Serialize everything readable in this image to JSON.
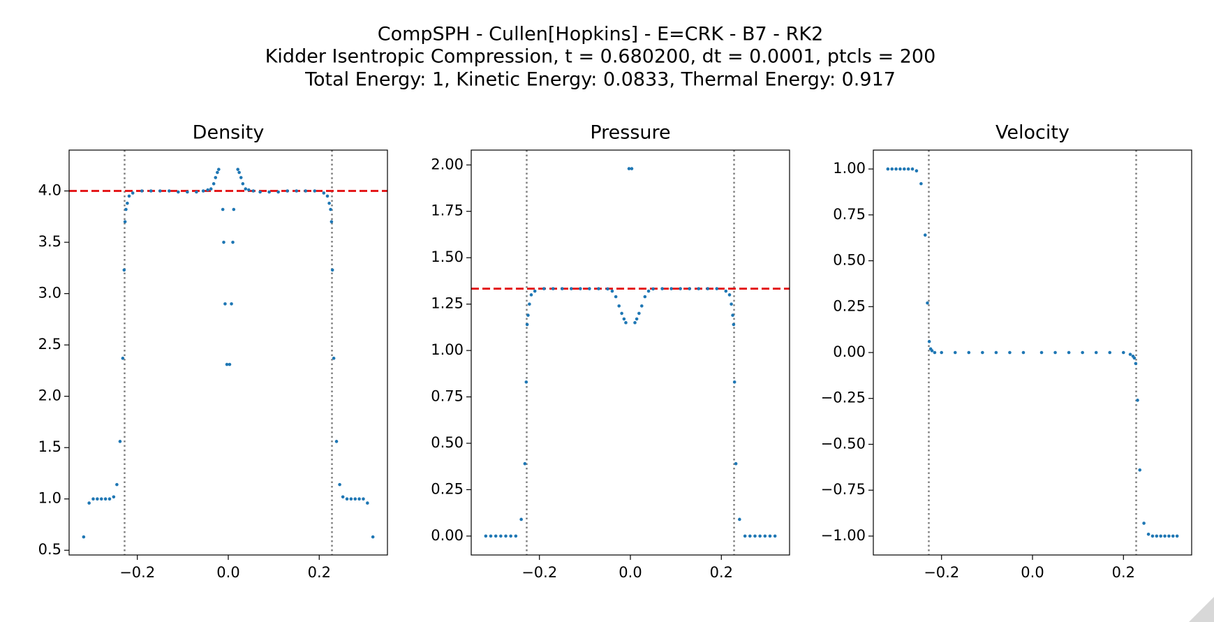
{
  "title_lines": [
    "CompSPH - Cullen[Hopkins] - E=CRK - B7 - RK2",
    "Kidder Isentropic Compression, t = 0.680200, dt = 0.0001, ptcls = 200",
    "Total Energy: 1, Kinetic Energy: 0.0833, Thermal Energy: 0.917"
  ],
  "chart_data": [
    {
      "type": "scatter",
      "title": "Density",
      "color": "#1f77b4",
      "x": [
        -0.318,
        -0.306,
        -0.297,
        -0.288,
        -0.279,
        -0.27,
        -0.261,
        -0.252,
        -0.245,
        -0.238,
        -0.232,
        -0.229,
        -0.227,
        -0.225,
        -0.222,
        -0.218,
        -0.21,
        -0.19,
        -0.17,
        -0.15,
        -0.13,
        -0.11,
        -0.09,
        -0.07,
        -0.055,
        -0.045,
        -0.038,
        -0.032,
        -0.028,
        -0.024,
        -0.021,
        -0.012,
        -0.01,
        -0.007,
        -0.003,
        0.003,
        0.007,
        0.01,
        0.012,
        0.021,
        0.024,
        0.028,
        0.032,
        0.038,
        0.045,
        0.055,
        0.07,
        0.09,
        0.11,
        0.13,
        0.15,
        0.17,
        0.19,
        0.21,
        0.218,
        0.222,
        0.225,
        0.227,
        0.229,
        0.232,
        0.238,
        0.245,
        0.252,
        0.261,
        0.27,
        0.279,
        0.288,
        0.297,
        0.306,
        0.318
      ],
      "y": [
        0.63,
        0.96,
        1.0,
        1.0,
        1.0,
        1.0,
        1.0,
        1.02,
        1.14,
        1.56,
        2.37,
        3.23,
        3.7,
        3.82,
        3.88,
        3.95,
        3.98,
        4.0,
        4.0,
        4.0,
        4.0,
        3.99,
        3.99,
        3.99,
        4.0,
        4.01,
        4.02,
        4.07,
        4.13,
        4.18,
        4.21,
        3.82,
        3.5,
        2.9,
        2.31,
        2.31,
        2.9,
        3.5,
        3.82,
        4.21,
        4.18,
        4.13,
        4.07,
        4.02,
        4.01,
        4.0,
        3.99,
        3.99,
        3.99,
        4.0,
        4.0,
        4.0,
        4.0,
        3.98,
        3.95,
        3.88,
        3.82,
        3.7,
        3.23,
        2.37,
        1.56,
        1.14,
        1.02,
        1.0,
        1.0,
        1.0,
        1.0,
        1.0,
        0.96,
        0.63
      ],
      "xlim": [
        -0.35,
        0.35
      ],
      "ylim": [
        0.454,
        4.398
      ],
      "xticks": [
        {
          "value": -0.2,
          "label": "−0.2"
        },
        {
          "value": 0,
          "label": "0.0"
        },
        {
          "value": 0.2,
          "label": "0.2"
        }
      ],
      "yticks": [
        {
          "value": 0.5,
          "label": "0.5"
        },
        {
          "value": 1,
          "label": "1.0"
        },
        {
          "value": 1.5,
          "label": "1.5"
        },
        {
          "value": 2,
          "label": "2.0"
        },
        {
          "value": 2.5,
          "label": "2.5"
        },
        {
          "value": 3,
          "label": "3.0"
        },
        {
          "value": 3.5,
          "label": "3.5"
        },
        {
          "value": 4,
          "label": "4.0"
        }
      ],
      "hline": 4.0,
      "hline_color": "#e41a1c",
      "vlines": [
        -0.228,
        0.228
      ],
      "vline_color": "#808080"
    },
    {
      "type": "scatter",
      "title": "Pressure",
      "color": "#1f77b4",
      "x": [
        -0.318,
        -0.307,
        -0.296,
        -0.285,
        -0.274,
        -0.263,
        -0.252,
        -0.24,
        -0.232,
        -0.229,
        -0.227,
        -0.225,
        -0.222,
        -0.218,
        -0.21,
        -0.19,
        -0.17,
        -0.15,
        -0.13,
        -0.11,
        -0.09,
        -0.07,
        -0.05,
        -0.04,
        -0.032,
        -0.025,
        -0.019,
        -0.014,
        -0.01,
        -0.003,
        0.003,
        0.01,
        0.014,
        0.019,
        0.025,
        0.032,
        0.04,
        0.05,
        0.07,
        0.09,
        0.11,
        0.13,
        0.15,
        0.17,
        0.19,
        0.21,
        0.218,
        0.222,
        0.225,
        0.227,
        0.229,
        0.232,
        0.24,
        0.252,
        0.263,
        0.274,
        0.285,
        0.296,
        0.307,
        0.318
      ],
      "y": [
        0,
        0,
        0,
        0,
        0,
        0,
        0,
        0.09,
        0.39,
        0.83,
        1.14,
        1.19,
        1.25,
        1.3,
        1.32,
        1.333,
        1.333,
        1.333,
        1.333,
        1.333,
        1.333,
        1.333,
        1.332,
        1.32,
        1.29,
        1.24,
        1.2,
        1.17,
        1.15,
        1.98,
        1.98,
        1.15,
        1.17,
        1.2,
        1.24,
        1.29,
        1.32,
        1.332,
        1.333,
        1.333,
        1.333,
        1.333,
        1.333,
        1.333,
        1.333,
        1.32,
        1.3,
        1.25,
        1.19,
        1.14,
        0.83,
        0.39,
        0.09,
        0,
        0,
        0,
        0,
        0,
        0,
        0
      ],
      "xlim": [
        -0.35,
        0.35
      ],
      "ylim": [
        -0.102,
        2.08
      ],
      "xticks": [
        {
          "value": -0.2,
          "label": "−0.2"
        },
        {
          "value": 0,
          "label": "0.0"
        },
        {
          "value": 0.2,
          "label": "0.2"
        }
      ],
      "yticks": [
        {
          "value": 0,
          "label": "0.00"
        },
        {
          "value": 0.25,
          "label": "0.25"
        },
        {
          "value": 0.5,
          "label": "0.50"
        },
        {
          "value": 0.75,
          "label": "0.75"
        },
        {
          "value": 1,
          "label": "1.00"
        },
        {
          "value": 1.25,
          "label": "1.25"
        },
        {
          "value": 1.5,
          "label": "1.50"
        },
        {
          "value": 1.75,
          "label": "1.75"
        },
        {
          "value": 2,
          "label": "2.00"
        }
      ],
      "hline": 1.333,
      "hline_color": "#e41a1c",
      "vlines": [
        -0.228,
        0.228
      ],
      "vline_color": "#808080"
    },
    {
      "type": "scatter",
      "title": "Velocity",
      "color": "#1f77b4",
      "x": [
        -0.318,
        -0.309,
        -0.3,
        -0.291,
        -0.282,
        -0.273,
        -0.264,
        -0.255,
        -0.245,
        -0.236,
        -0.231,
        -0.227,
        -0.224,
        -0.221,
        -0.215,
        -0.2,
        -0.17,
        -0.14,
        -0.11,
        -0.08,
        -0.05,
        -0.02,
        0.02,
        0.05,
        0.08,
        0.11,
        0.14,
        0.17,
        0.2,
        0.215,
        0.221,
        0.224,
        0.227,
        0.231,
        0.236,
        0.245,
        0.255,
        0.264,
        0.273,
        0.282,
        0.291,
        0.3,
        0.309,
        0.318
      ],
      "y": [
        1,
        1,
        1,
        1,
        1,
        1,
        1,
        0.99,
        0.92,
        0.64,
        0.27,
        0.06,
        0.02,
        0.01,
        0,
        0,
        0,
        0,
        0,
        0,
        0,
        0,
        0,
        0,
        0,
        0,
        0,
        0,
        0,
        -0.01,
        -0.02,
        -0.03,
        -0.06,
        -0.26,
        -0.64,
        -0.93,
        -0.99,
        -1,
        -1,
        -1,
        -1,
        -1,
        -1,
        -1
      ],
      "xlim": [
        -0.35,
        0.35
      ],
      "ylim": [
        -1.103,
        1.103
      ],
      "xticks": [
        {
          "value": -0.2,
          "label": "−0.2"
        },
        {
          "value": 0,
          "label": "0.0"
        },
        {
          "value": 0.2,
          "label": "0.2"
        }
      ],
      "yticks": [
        {
          "value": -1,
          "label": "−1.00"
        },
        {
          "value": -0.75,
          "label": "−0.75"
        },
        {
          "value": -0.5,
          "label": "−0.50"
        },
        {
          "value": -0.25,
          "label": "−0.25"
        },
        {
          "value": 0,
          "label": "0.00"
        },
        {
          "value": 0.25,
          "label": "0.25"
        },
        {
          "value": 0.5,
          "label": "0.50"
        },
        {
          "value": 0.75,
          "label": "0.75"
        },
        {
          "value": 1,
          "label": "1.00"
        }
      ],
      "vlines": [
        -0.228,
        0.228
      ],
      "vline_color": "#808080"
    }
  ]
}
